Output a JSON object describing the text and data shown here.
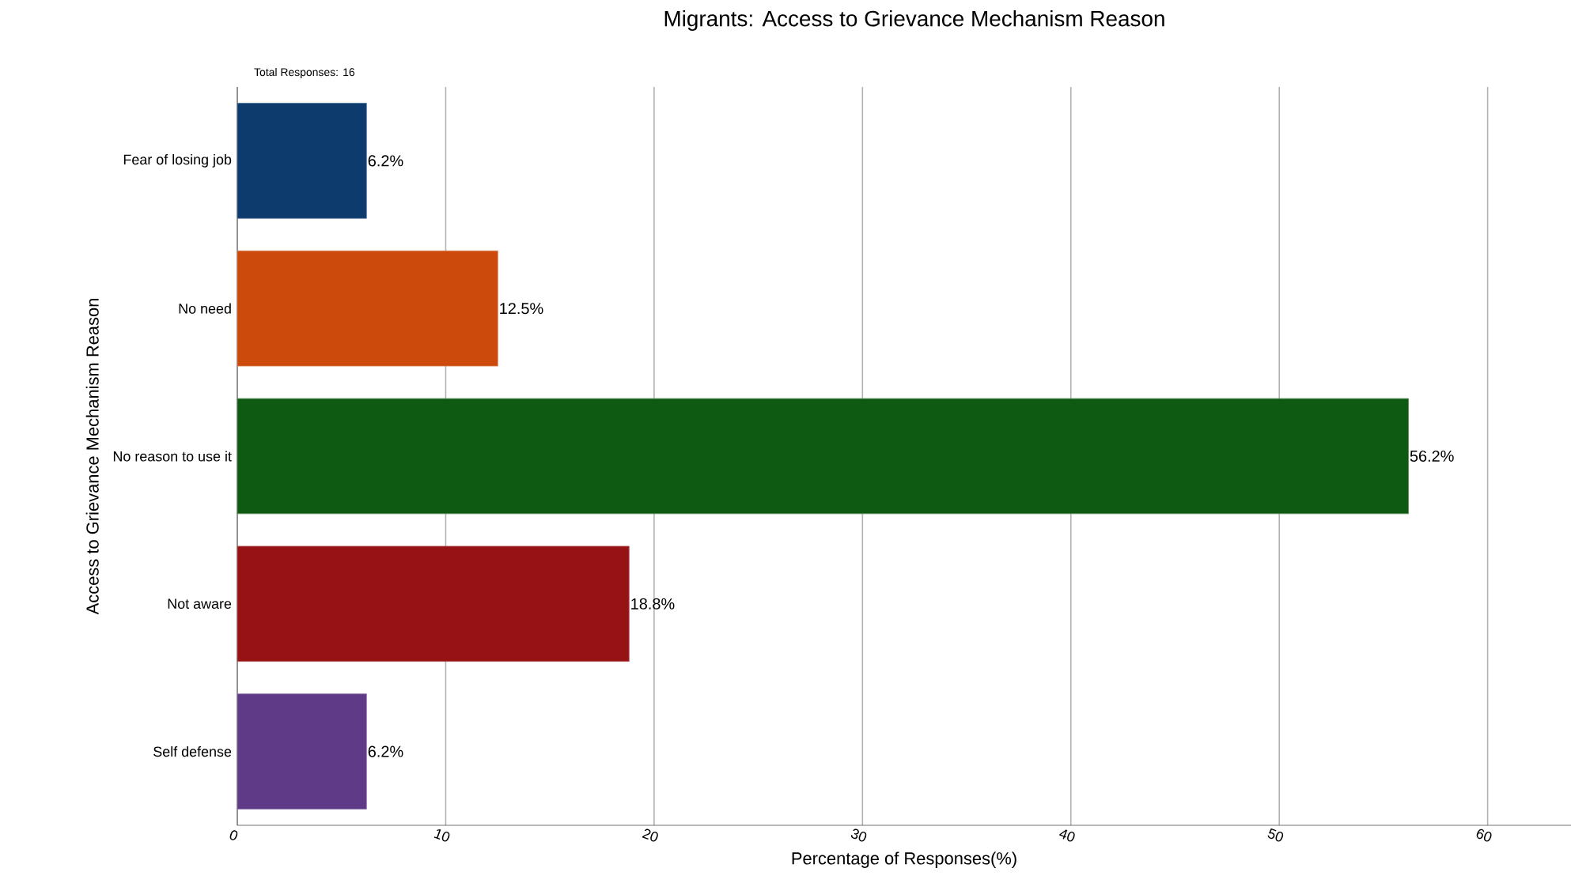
{
  "chart_data": {
    "type": "bar",
    "orientation": "horizontal",
    "title": "Migrants: Access to Grievance Mechanism Reason",
    "xlabel": "Percentage of Responses(%)",
    "ylabel": "Access to Grievance Mechanism Reason",
    "annotations": [
      "Total Responses: 16"
    ],
    "categories": [
      "Fear of losing job",
      "No need",
      "No reason to use it",
      "Not aware",
      "Self defense"
    ],
    "values": [
      6.2,
      12.5,
      56.2,
      18.8,
      6.2
    ],
    "value_labels": [
      "6.2%",
      "12.5%",
      "56.2%",
      "18.8%",
      "6.2%"
    ],
    "colors": [
      "#0d3b6e",
      "#cc4a0c",
      "#0f5a12",
      "#961214",
      "#5e3a87"
    ],
    "xlim": [
      0,
      64
    ],
    "xticks": [
      0,
      10,
      20,
      30,
      40,
      50,
      60
    ],
    "grid": "x"
  }
}
